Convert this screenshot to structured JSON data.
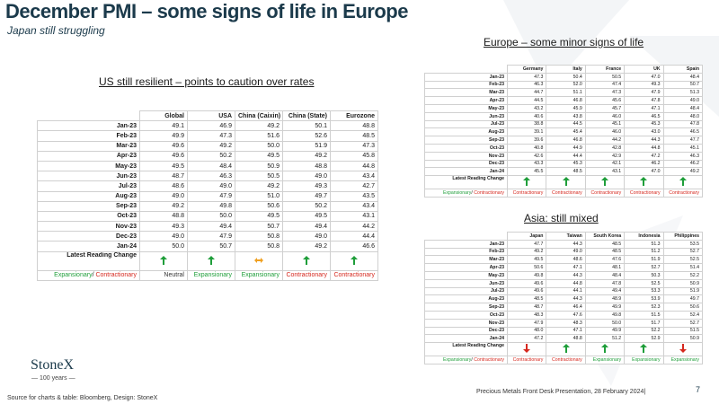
{
  "header": {
    "title": "December PMI – some signs of life in Europe",
    "subtitle": "Japan still struggling"
  },
  "sections": {
    "us_title": "US still resilient – points to caution over rates",
    "eu_title": "Europe – some minor signs of life",
    "asia_title": "Asia: still mixed"
  },
  "labels": {
    "latest_reading_change": "Latest Reading Change",
    "expansionary": "Expansionary",
    "slash": "/ ",
    "contractionary": "Contractionary"
  },
  "colors": {
    "green": "#1f9e3a",
    "red": "#d6281e",
    "orange": "#f0a020",
    "navy": "#1b3a4b"
  },
  "footer": {
    "logo": "StoneX",
    "logo_sub": "— 100 years —",
    "source": "Source for charts & table: Bloomberg, Design: StoneX",
    "presentation": "Precious Metals Front Desk Presentation, 28 February 2024|",
    "page": "7"
  },
  "chart_data": [
    {
      "type": "table",
      "id": "us",
      "columns": [
        "Global",
        "USA",
        "China (Caixin)",
        "China (State)",
        "Eurozone"
      ],
      "rows": [
        {
          "label": "Jan-23",
          "values": [
            "49.1",
            "46.9",
            "49.2",
            "50.1",
            "48.8"
          ]
        },
        {
          "label": "Feb-23",
          "values": [
            "49.9",
            "47.3",
            "51.6",
            "52.6",
            "48.5"
          ]
        },
        {
          "label": "Mar-23",
          "values": [
            "49.6",
            "49.2",
            "50.0",
            "51.9",
            "47.3"
          ]
        },
        {
          "label": "Apr-23",
          "values": [
            "49.6",
            "50.2",
            "49.5",
            "49.2",
            "45.8"
          ]
        },
        {
          "label": "May-23",
          "values": [
            "49.5",
            "48.4",
            "50.9",
            "48.8",
            "44.8"
          ]
        },
        {
          "label": "Jun-23",
          "values": [
            "48.7",
            "46.3",
            "50.5",
            "49.0",
            "43.4"
          ]
        },
        {
          "label": "Jul-23",
          "values": [
            "48.6",
            "49.0",
            "49.2",
            "49.3",
            "42.7"
          ]
        },
        {
          "label": "Aug-23",
          "values": [
            "49.0",
            "47.9",
            "51.0",
            "49.7",
            "43.5"
          ]
        },
        {
          "label": "Sep-23",
          "values": [
            "49.2",
            "49.8",
            "50.6",
            "50.2",
            "43.4"
          ]
        },
        {
          "label": "Oct-23",
          "values": [
            "48.8",
            "50.0",
            "49.5",
            "49.5",
            "43.1"
          ]
        },
        {
          "label": "Nov-23",
          "values": [
            "49.3",
            "49.4",
            "50.7",
            "49.4",
            "44.2"
          ]
        },
        {
          "label": "Dec-23",
          "values": [
            "49.0",
            "47.9",
            "50.8",
            "49.0",
            "44.4"
          ]
        },
        {
          "label": "Jan-24",
          "values": [
            "50.0",
            "50.7",
            "50.8",
            "49.2",
            "46.6"
          ]
        }
      ],
      "arrows": [
        "up",
        "up",
        "flat",
        "up",
        "up"
      ],
      "status": [
        "Neutral",
        "Expansionary",
        "Expansionary",
        "Contractionary",
        "Contractionary"
      ]
    },
    {
      "type": "table",
      "id": "eu",
      "columns": [
        "Germany",
        "Italy",
        "France",
        "UK",
        "Spain"
      ],
      "rows": [
        {
          "label": "Jan-23",
          "values": [
            "47.3",
            "50.4",
            "50.5",
            "47.0",
            "48.4"
          ]
        },
        {
          "label": "Feb-23",
          "values": [
            "46.3",
            "52.0",
            "47.4",
            "49.3",
            "50.7"
          ]
        },
        {
          "label": "Mar-23",
          "values": [
            "44.7",
            "51.1",
            "47.3",
            "47.9",
            "51.3"
          ]
        },
        {
          "label": "Apr-23",
          "values": [
            "44.5",
            "46.8",
            "45.6",
            "47.8",
            "49.0"
          ]
        },
        {
          "label": "May-23",
          "values": [
            "43.2",
            "45.9",
            "45.7",
            "47.1",
            "48.4"
          ]
        },
        {
          "label": "Jun-23",
          "values": [
            "40.6",
            "43.8",
            "46.0",
            "46.5",
            "48.0"
          ]
        },
        {
          "label": "Jul-23",
          "values": [
            "38.8",
            "44.5",
            "45.1",
            "45.3",
            "47.8"
          ]
        },
        {
          "label": "Aug-23",
          "values": [
            "39.1",
            "45.4",
            "46.0",
            "43.0",
            "46.5"
          ]
        },
        {
          "label": "Sep-23",
          "values": [
            "39.6",
            "46.8",
            "44.2",
            "44.3",
            "47.7"
          ]
        },
        {
          "label": "Oct-23",
          "values": [
            "40.8",
            "44.9",
            "42.8",
            "44.8",
            "45.1"
          ]
        },
        {
          "label": "Nov-23",
          "values": [
            "42.6",
            "44.4",
            "42.9",
            "47.2",
            "46.3"
          ]
        },
        {
          "label": "Dec-23",
          "values": [
            "43.3",
            "45.3",
            "42.1",
            "46.2",
            "46.2"
          ]
        },
        {
          "label": "Jan-24",
          "values": [
            "45.5",
            "48.5",
            "43.1",
            "47.0",
            "49.2"
          ]
        }
      ],
      "arrows": [
        "up",
        "up",
        "up",
        "up",
        "up"
      ],
      "status": [
        "Contractionary",
        "Contractionary",
        "Contractionary",
        "Contractionary",
        "Contractionary"
      ]
    },
    {
      "type": "table",
      "id": "asia",
      "columns": [
        "Japan",
        "Taiwan",
        "South Korea",
        "Indonesia",
        "Philippines"
      ],
      "rows": [
        {
          "label": "Jan-23",
          "values": [
            "47.7",
            "44.3",
            "48.5",
            "51.3",
            "53.5"
          ]
        },
        {
          "label": "Feb-23",
          "values": [
            "49.2",
            "49.0",
            "48.5",
            "51.2",
            "52.7"
          ]
        },
        {
          "label": "Mar-23",
          "values": [
            "49.5",
            "48.6",
            "47.6",
            "51.9",
            "52.5"
          ]
        },
        {
          "label": "Apr-23",
          "values": [
            "50.6",
            "47.1",
            "48.1",
            "52.7",
            "51.4"
          ]
        },
        {
          "label": "May-23",
          "values": [
            "49.8",
            "44.3",
            "48.4",
            "50.3",
            "52.2"
          ]
        },
        {
          "label": "Jun-23",
          "values": [
            "49.6",
            "44.8",
            "47.8",
            "52.5",
            "50.9"
          ]
        },
        {
          "label": "Jul-23",
          "values": [
            "49.6",
            "44.1",
            "49.4",
            "53.3",
            "51.9"
          ]
        },
        {
          "label": "Aug-23",
          "values": [
            "48.5",
            "44.3",
            "48.9",
            "53.9",
            "49.7"
          ]
        },
        {
          "label": "Sep-23",
          "values": [
            "48.7",
            "46.4",
            "49.9",
            "52.3",
            "50.6"
          ]
        },
        {
          "label": "Oct-23",
          "values": [
            "48.3",
            "47.6",
            "49.8",
            "51.5",
            "52.4"
          ]
        },
        {
          "label": "Nov-23",
          "values": [
            "47.9",
            "48.3",
            "50.0",
            "51.7",
            "52.7"
          ]
        },
        {
          "label": "Dec-23",
          "values": [
            "48.0",
            "47.1",
            "49.9",
            "52.2",
            "51.5"
          ]
        },
        {
          "label": "Jan-24",
          "values": [
            "47.2",
            "48.8",
            "51.2",
            "52.9",
            "50.9"
          ]
        }
      ],
      "arrows": [
        "down",
        "up",
        "up",
        "up",
        "down"
      ],
      "status": [
        "Contractionary",
        "Contractionary",
        "Expansionary",
        "Expansionary",
        "Expansionary"
      ]
    }
  ]
}
